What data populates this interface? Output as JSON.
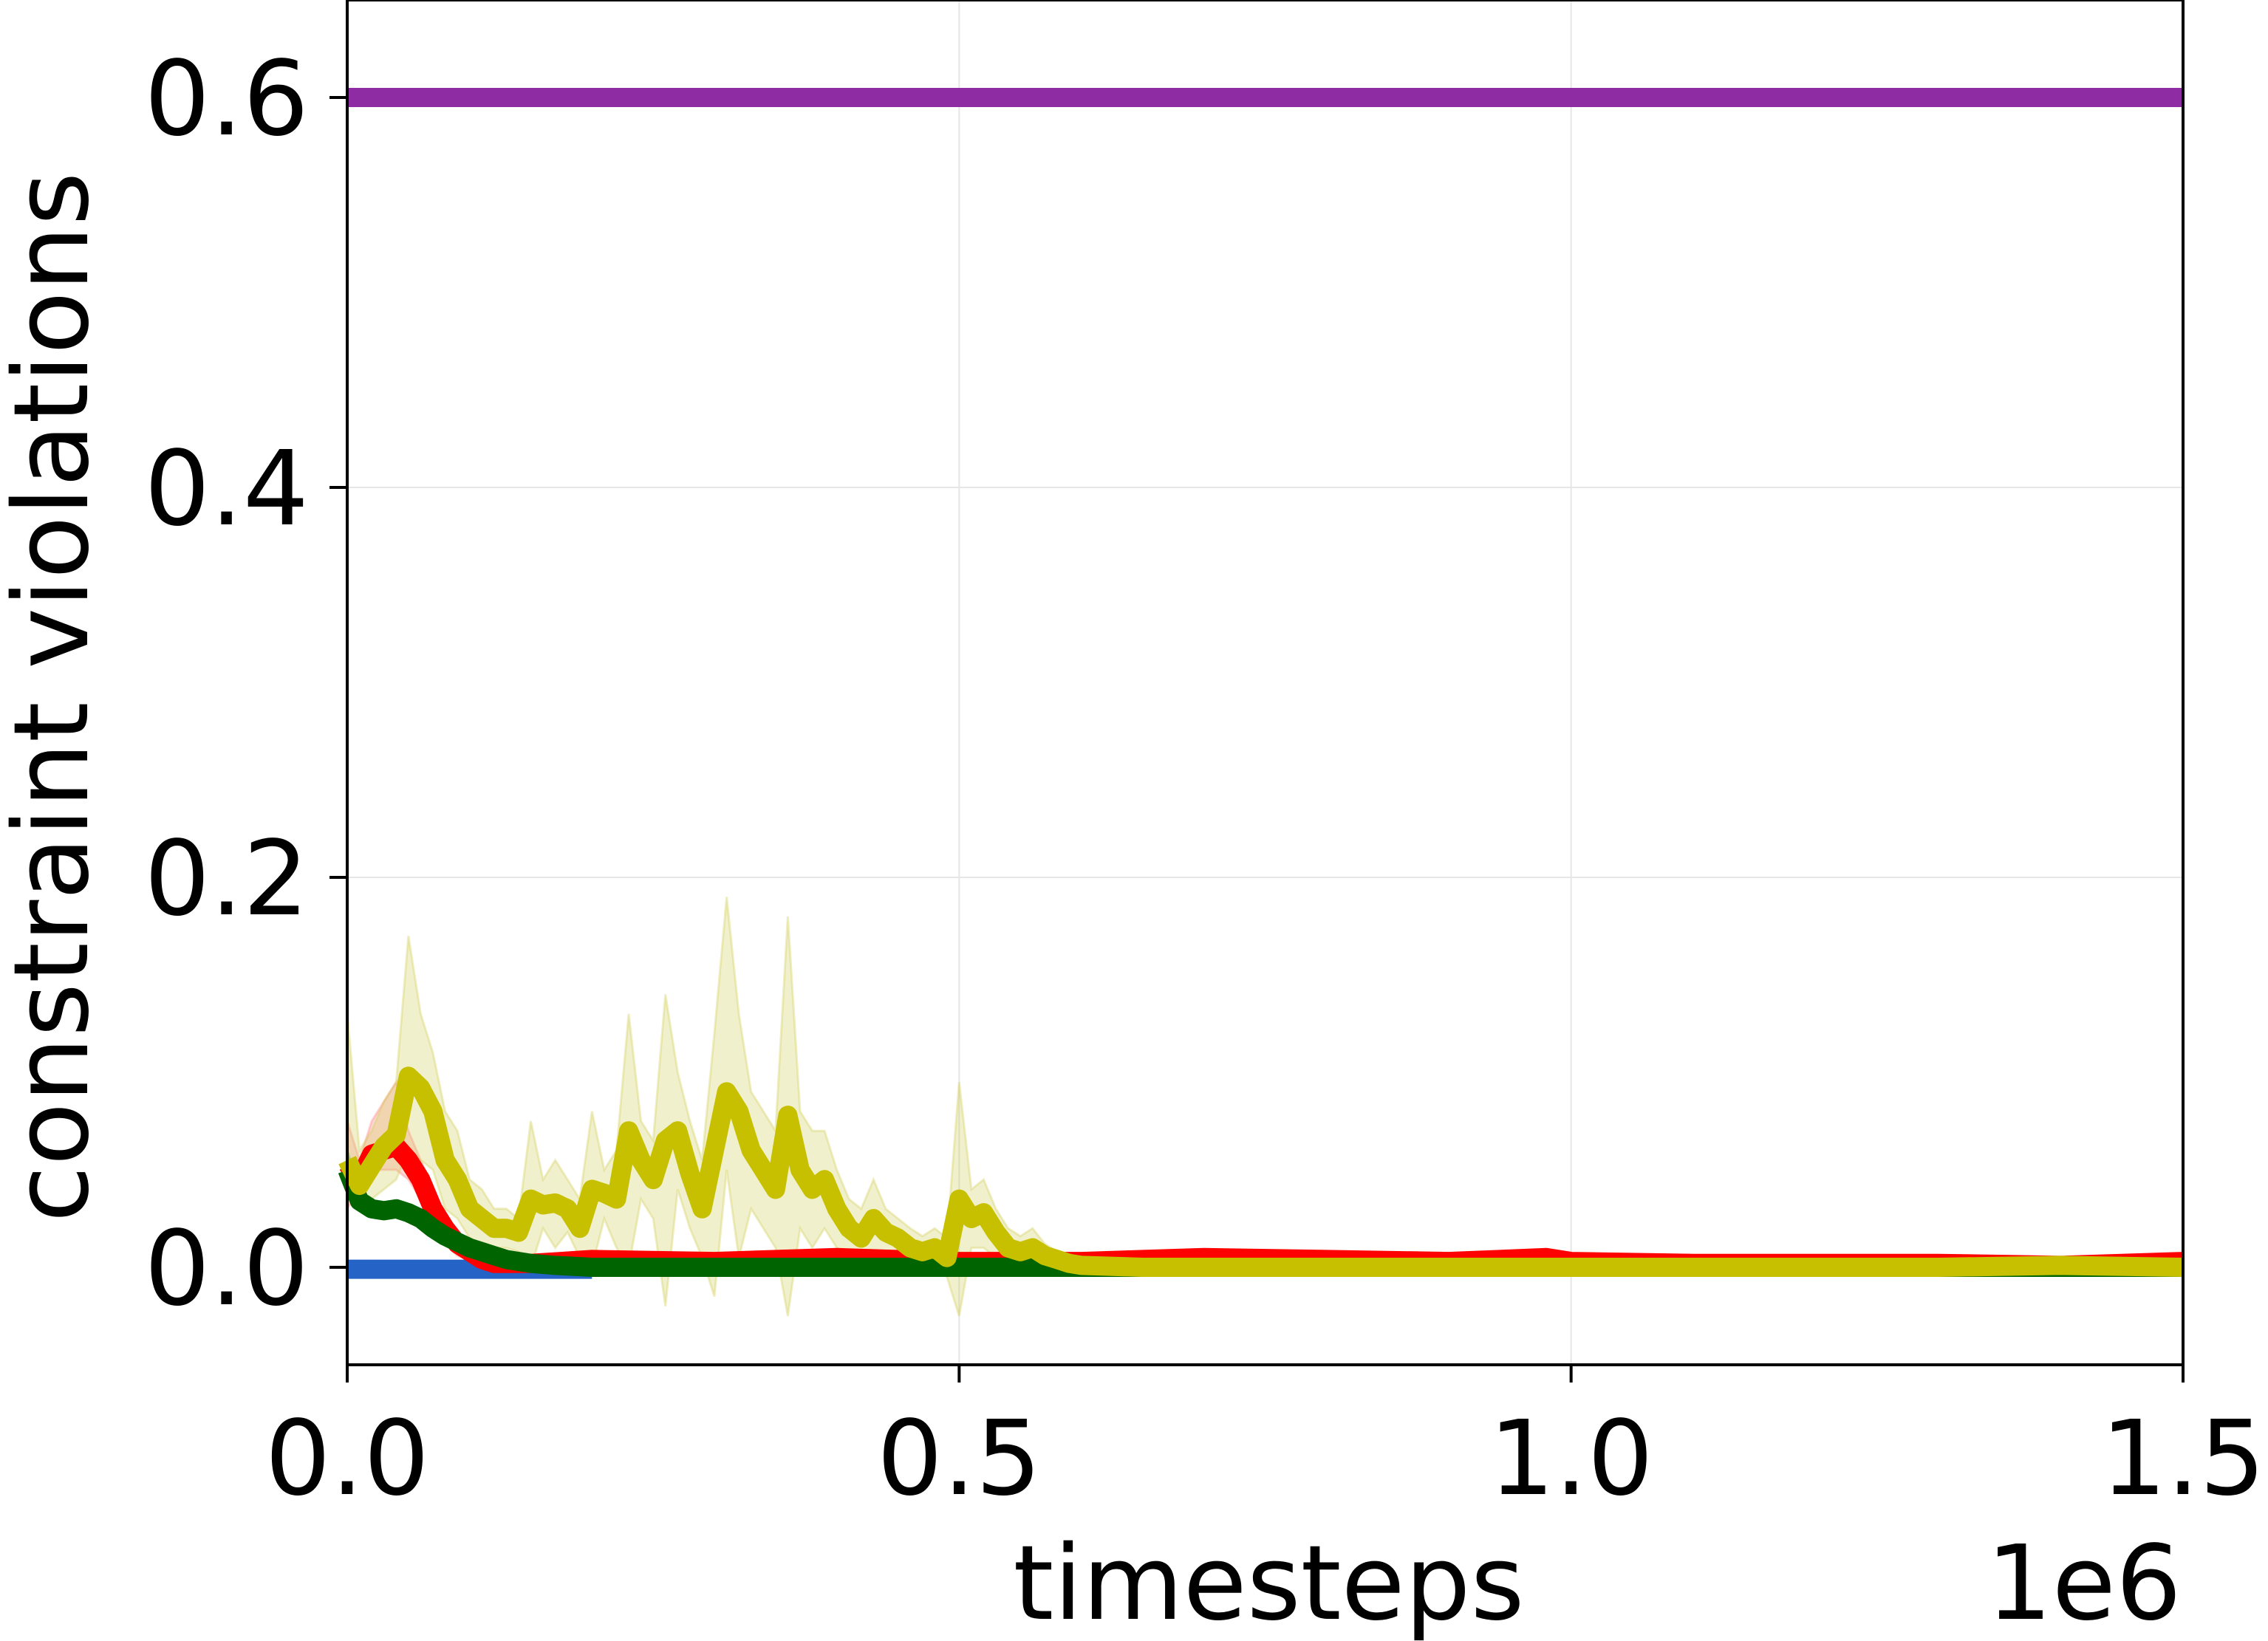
{
  "chart_data": {
    "type": "line",
    "title": "",
    "xlabel": "timesteps",
    "ylabel": "constraint violations",
    "x_offset_label": "1e6",
    "xlim": [
      0.0,
      1.5
    ],
    "ylim": [
      -0.05,
      0.65
    ],
    "x_scale_multiplier": 1000000,
    "xticks": [
      0.0,
      0.5,
      1.0,
      1.5
    ],
    "xtick_labels": [
      "0.0",
      "0.5",
      "1.0",
      "1.5"
    ],
    "yticks": [
      0.0,
      0.2,
      0.4,
      0.6
    ],
    "ytick_labels": [
      "0.0",
      "0.2",
      "0.4",
      "0.6"
    ],
    "grid": true,
    "legend": "none",
    "series": [
      {
        "color": "#8e2ca3",
        "x": [
          0.0,
          1.5
        ],
        "y": [
          0.6,
          0.6
        ]
      },
      {
        "color": "#2563c7",
        "x": [
          0.0,
          0.2
        ],
        "y": [
          -0.001,
          -0.001
        ]
      },
      {
        "color": "#ff0000",
        "band_color": "#ff8080",
        "x": [
          0.0,
          0.01,
          0.02,
          0.03,
          0.04,
          0.05,
          0.06,
          0.07,
          0.08,
          0.09,
          0.1,
          0.11,
          0.12,
          0.13,
          0.15,
          0.2,
          0.3,
          0.4,
          0.5,
          0.6,
          0.7,
          0.8,
          0.9,
          0.98,
          1.0,
          1.1,
          1.2,
          1.3,
          1.4,
          1.5
        ],
        "y": [
          0.053,
          0.045,
          0.058,
          0.06,
          0.062,
          0.055,
          0.045,
          0.03,
          0.02,
          0.012,
          0.008,
          0.004,
          0.002,
          0.002,
          0.002,
          0.004,
          0.003,
          0.005,
          0.003,
          0.003,
          0.005,
          0.004,
          0.003,
          0.005,
          0.003,
          0.002,
          0.002,
          0.002,
          0.001,
          0.003
        ],
        "y_lower": [
          0.03,
          0.04,
          0.05,
          0.05,
          0.05,
          0.045,
          0.035,
          0.02,
          0.012,
          0.006,
          0.004,
          0.001,
          0.0,
          0.0,
          0.0,
          0.001,
          0.001,
          0.002,
          0.001,
          0.001,
          0.002,
          0.002,
          0.001,
          0.003,
          0.001,
          0.0,
          0.0,
          0.0,
          0.0,
          0.001
        ],
        "y_upper": [
          0.075,
          0.055,
          0.075,
          0.085,
          0.095,
          0.07,
          0.055,
          0.04,
          0.028,
          0.018,
          0.012,
          0.007,
          0.004,
          0.004,
          0.004,
          0.006,
          0.005,
          0.007,
          0.005,
          0.005,
          0.007,
          0.006,
          0.005,
          0.007,
          0.005,
          0.004,
          0.004,
          0.004,
          0.003,
          0.005
        ]
      },
      {
        "color": "#006400",
        "band_color": "#228b22",
        "x": [
          0.0,
          0.01,
          0.02,
          0.03,
          0.04,
          0.05,
          0.06,
          0.07,
          0.08,
          0.09,
          0.1,
          0.11,
          0.12,
          0.13,
          0.14,
          0.15,
          0.17,
          0.2,
          0.3,
          0.4,
          0.5,
          0.6,
          0.7,
          0.8,
          0.9,
          1.0,
          1.1,
          1.2,
          1.3,
          1.4,
          1.5
        ],
        "y": [
          0.05,
          0.034,
          0.03,
          0.029,
          0.03,
          0.028,
          0.025,
          0.02,
          0.016,
          0.013,
          0.01,
          0.008,
          0.006,
          0.004,
          0.003,
          0.002,
          0.001,
          0.0,
          0.0,
          0.0,
          0.0,
          0.0,
          0.0,
          0.0,
          0.0,
          0.0,
          0.0,
          0.0,
          0.0,
          0.0,
          0.0
        ],
        "y_lower": [
          0.04,
          0.029,
          0.026,
          0.025,
          0.026,
          0.024,
          0.021,
          0.017,
          0.013,
          0.01,
          0.008,
          0.006,
          0.004,
          0.003,
          0.002,
          0.001,
          0.0,
          0.0,
          0.0,
          0.0,
          0.0,
          0.0,
          0.0,
          0.0,
          0.0,
          0.0,
          0.0,
          0.0,
          0.0,
          0.0,
          0.0
        ],
        "y_upper": [
          0.06,
          0.039,
          0.034,
          0.033,
          0.034,
          0.032,
          0.029,
          0.023,
          0.019,
          0.016,
          0.012,
          0.01,
          0.008,
          0.005,
          0.004,
          0.003,
          0.002,
          0.001,
          0.001,
          0.001,
          0.001,
          0.001,
          0.001,
          0.001,
          0.001,
          0.001,
          0.001,
          0.001,
          0.001,
          0.001,
          0.001
        ]
      },
      {
        "color": "#c7c000",
        "band_color": "#d2cd55",
        "x": [
          0.0,
          0.01,
          0.02,
          0.03,
          0.04,
          0.05,
          0.06,
          0.07,
          0.08,
          0.09,
          0.1,
          0.11,
          0.12,
          0.13,
          0.14,
          0.15,
          0.16,
          0.17,
          0.18,
          0.19,
          0.2,
          0.21,
          0.22,
          0.23,
          0.24,
          0.25,
          0.26,
          0.27,
          0.28,
          0.29,
          0.3,
          0.31,
          0.32,
          0.33,
          0.34,
          0.35,
          0.36,
          0.37,
          0.38,
          0.39,
          0.4,
          0.41,
          0.42,
          0.43,
          0.44,
          0.45,
          0.46,
          0.47,
          0.48,
          0.49,
          0.5,
          0.51,
          0.52,
          0.53,
          0.54,
          0.55,
          0.56,
          0.57,
          0.58,
          0.59,
          0.6,
          0.65,
          0.7,
          0.8,
          0.9,
          1.0,
          1.1,
          1.2,
          1.3,
          1.4,
          1.5
        ],
        "y": [
          0.055,
          0.042,
          0.052,
          0.062,
          0.068,
          0.098,
          0.092,
          0.08,
          0.055,
          0.045,
          0.03,
          0.025,
          0.02,
          0.02,
          0.018,
          0.035,
          0.032,
          0.033,
          0.03,
          0.02,
          0.04,
          0.038,
          0.035,
          0.07,
          0.055,
          0.045,
          0.065,
          0.07,
          0.048,
          0.03,
          0.06,
          0.09,
          0.08,
          0.06,
          0.05,
          0.04,
          0.078,
          0.05,
          0.04,
          0.045,
          0.03,
          0.02,
          0.015,
          0.025,
          0.018,
          0.015,
          0.01,
          0.008,
          0.01,
          0.005,
          0.035,
          0.025,
          0.028,
          0.018,
          0.01,
          0.008,
          0.01,
          0.006,
          0.004,
          0.002,
          0.001,
          0.0,
          0.0,
          0.0,
          0.0,
          0.0,
          0.0,
          0.0,
          0.0,
          0.001,
          0.0
        ],
        "y_lower": [
          0.04,
          0.03,
          0.035,
          0.04,
          0.045,
          0.06,
          0.055,
          0.05,
          0.03,
          0.025,
          0.015,
          0.012,
          0.01,
          0.01,
          0.008,
          0.0,
          0.02,
          0.01,
          0.018,
          0.005,
          0.0,
          0.025,
          0.01,
          0.0,
          0.035,
          0.025,
          -0.02,
          0.04,
          0.02,
          0.005,
          -0.015,
          0.05,
          0.005,
          0.03,
          0.02,
          0.01,
          -0.025,
          0.02,
          0.01,
          0.02,
          0.01,
          0.005,
          0.0,
          0.005,
          0.005,
          0.005,
          0.0,
          0.0,
          0.0,
          -0.005,
          -0.025,
          0.01,
          0.01,
          0.005,
          0.0,
          0.0,
          0.0,
          0.0,
          0.0,
          0.0,
          0.0,
          0.0,
          0.0,
          0.0,
          0.0,
          0.0,
          0.0,
          0.0,
          0.0,
          0.0,
          0.0
        ],
        "y_upper": [
          0.13,
          0.06,
          0.07,
          0.085,
          0.095,
          0.17,
          0.13,
          0.11,
          0.08,
          0.07,
          0.045,
          0.04,
          0.03,
          0.03,
          0.025,
          0.075,
          0.045,
          0.055,
          0.045,
          0.035,
          0.08,
          0.05,
          0.06,
          0.13,
          0.075,
          0.065,
          0.14,
          0.1,
          0.075,
          0.055,
          0.12,
          0.19,
          0.13,
          0.09,
          0.08,
          0.07,
          0.18,
          0.08,
          0.07,
          0.07,
          0.05,
          0.035,
          0.03,
          0.045,
          0.03,
          0.025,
          0.02,
          0.016,
          0.02,
          0.015,
          0.095,
          0.04,
          0.045,
          0.03,
          0.02,
          0.016,
          0.02,
          0.012,
          0.008,
          0.004,
          0.002,
          0.001,
          0.001,
          0.001,
          0.001,
          0.001,
          0.001,
          0.001,
          0.001,
          0.002,
          0.001
        ]
      }
    ]
  }
}
